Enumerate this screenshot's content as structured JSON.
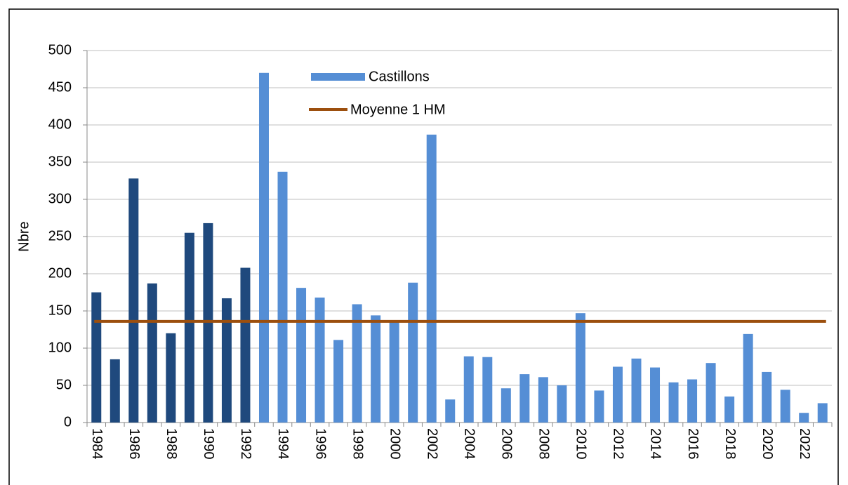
{
  "chart_data": {
    "type": "bar",
    "ylabel": "Nbre",
    "categories": [
      "1984",
      null,
      "1986",
      null,
      "1988",
      null,
      "1990",
      null,
      "1992",
      null,
      "1994",
      null,
      "1996",
      null,
      "1998",
      null,
      "2000",
      null,
      "2002",
      null,
      "2004",
      null,
      "2006",
      null,
      "2008",
      null,
      "2010",
      null,
      "2012",
      null,
      "2014",
      null,
      "2016",
      null,
      "2018",
      null,
      "2020",
      null,
      "2022",
      null
    ],
    "series": [
      {
        "name": "Castillons",
        "color": "#558ed5",
        "colors": [
          "#1f497d",
          "#1f497d",
          "#1f497d",
          "#1f497d",
          "#1f497d",
          "#1f497d",
          "#1f497d",
          "#1f497d",
          "#1f497d",
          "#558ed5",
          "#558ed5",
          "#558ed5",
          "#558ed5",
          "#558ed5",
          "#558ed5",
          "#558ed5",
          "#558ed5",
          "#558ed5",
          "#558ed5",
          "#558ed5",
          "#558ed5",
          "#558ed5",
          "#558ed5",
          "#558ed5",
          "#558ed5",
          "#558ed5",
          "#558ed5",
          "#558ed5",
          "#558ed5",
          "#558ed5",
          "#558ed5",
          "#558ed5",
          "#558ed5",
          "#558ed5",
          "#558ed5",
          "#558ed5",
          "#558ed5",
          "#558ed5",
          "#558ed5",
          "#558ed5"
        ],
        "values": [
          175,
          85,
          328,
          187,
          120,
          255,
          268,
          167,
          208,
          470,
          337,
          181,
          168,
          111,
          159,
          144,
          137,
          188,
          387,
          31,
          89,
          88,
          46,
          65,
          61,
          50,
          147,
          43,
          75,
          86,
          74,
          54,
          58,
          80,
          35,
          119,
          68,
          44,
          13,
          26
        ]
      }
    ],
    "mean": {
      "name": "Moyenne 1 HM",
      "color": "#9c4f0e",
      "value": 136
    },
    "ylim": [
      0,
      500
    ],
    "yticks": [
      0,
      50,
      100,
      150,
      200,
      250,
      300,
      350,
      400,
      450,
      500
    ],
    "grid": true
  }
}
